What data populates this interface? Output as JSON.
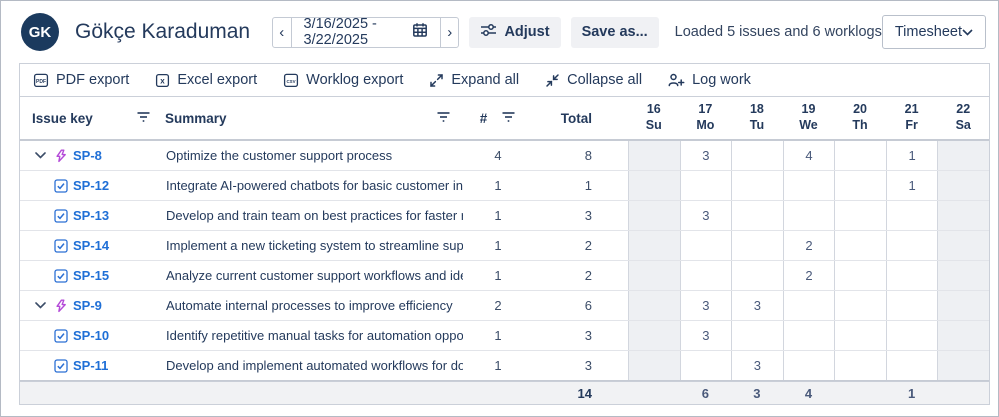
{
  "header": {
    "avatar_initials": "GK",
    "user_name": "Gökçe Karaduman",
    "prev_arrow": "‹",
    "next_arrow": "›",
    "date_range": "3/16/2025 - 3/22/2025",
    "adjust_label": "Adjust",
    "save_as_label": "Save as...",
    "status_text": "Loaded 5 issues and 6 worklogs",
    "view_selected": "Timesheet"
  },
  "toolbar": {
    "items": [
      {
        "id": "pdf-export",
        "label": "PDF export",
        "icon": "pdf-file-icon"
      },
      {
        "id": "excel-export",
        "label": "Excel export",
        "icon": "excel-file-icon"
      },
      {
        "id": "worklog-export",
        "label": "Worklog export",
        "icon": "csv-file-icon"
      },
      {
        "id": "expand-all",
        "label": "Expand all",
        "icon": "expand-icon"
      },
      {
        "id": "collapse-all",
        "label": "Collapse all",
        "icon": "collapse-icon"
      },
      {
        "id": "log-work",
        "label": "Log work",
        "icon": "person-plus-icon"
      }
    ]
  },
  "table": {
    "columns": {
      "issue_key": "Issue key",
      "summary": "Summary",
      "count": "#",
      "total": "Total"
    },
    "days": [
      {
        "num": "16",
        "abbr": "Su",
        "weekend": true
      },
      {
        "num": "17",
        "abbr": "Mo",
        "weekend": false
      },
      {
        "num": "18",
        "abbr": "Tu",
        "weekend": false
      },
      {
        "num": "19",
        "abbr": "We",
        "weekend": false
      },
      {
        "num": "20",
        "abbr": "Th",
        "weekend": false
      },
      {
        "num": "21",
        "abbr": "Fr",
        "weekend": false
      },
      {
        "num": "22",
        "abbr": "Sa",
        "weekend": true
      }
    ],
    "rows": [
      {
        "key": "SP-8",
        "type": "epic",
        "expanded": true,
        "summary": "Optimize the customer support process",
        "count": "4",
        "total": "8",
        "cells": [
          "",
          "3",
          "",
          "4",
          "",
          "1",
          ""
        ]
      },
      {
        "key": "SP-12",
        "type": "task",
        "expanded": false,
        "summary": "Integrate AI-powered chatbots for basic customer inq...",
        "count": "1",
        "total": "1",
        "cells": [
          "",
          "",
          "",
          "",
          "",
          "1",
          ""
        ]
      },
      {
        "key": "SP-13",
        "type": "task",
        "expanded": false,
        "summary": "Develop and train team on best practices for faster re...",
        "count": "1",
        "total": "3",
        "cells": [
          "",
          "3",
          "",
          "",
          "",
          "",
          ""
        ]
      },
      {
        "key": "SP-14",
        "type": "task",
        "expanded": false,
        "summary": "Implement a new ticketing system to streamline supp...",
        "count": "1",
        "total": "2",
        "cells": [
          "",
          "",
          "",
          "2",
          "",
          "",
          ""
        ]
      },
      {
        "key": "SP-15",
        "type": "task",
        "expanded": false,
        "summary": "Analyze current customer support workflows and ide...",
        "count": "1",
        "total": "2",
        "cells": [
          "",
          "",
          "",
          "2",
          "",
          "",
          ""
        ]
      },
      {
        "key": "SP-9",
        "type": "epic",
        "expanded": true,
        "summary": "Automate internal processes to improve efficiency",
        "count": "2",
        "total": "6",
        "cells": [
          "",
          "3",
          "3",
          "",
          "",
          "",
          ""
        ]
      },
      {
        "key": "SP-10",
        "type": "task",
        "expanded": false,
        "summary": "Identify repetitive manual tasks for automation oppor...",
        "count": "1",
        "total": "3",
        "cells": [
          "",
          "3",
          "",
          "",
          "",
          "",
          ""
        ]
      },
      {
        "key": "SP-11",
        "type": "task",
        "expanded": false,
        "summary": "Develop and implement automated workflows for do...",
        "count": "1",
        "total": "3",
        "cells": [
          "",
          "",
          "3",
          "",
          "",
          "",
          ""
        ]
      }
    ],
    "footer": {
      "total": "14",
      "cells": [
        "",
        "6",
        "3",
        "4",
        "",
        "1",
        ""
      ]
    }
  },
  "colors": {
    "text_navy": "#243a5c",
    "link_blue": "#1f6fd6",
    "epic_purple": "#b44bd8",
    "task_blue": "#2b6fd4",
    "weekend_bg": "#eef0f3",
    "footer_bg": "#f1f2f4",
    "avatar_bg": "#1b3a5e",
    "button_bg": "#f0f1f4",
    "grid_border": "#d2d6de"
  }
}
